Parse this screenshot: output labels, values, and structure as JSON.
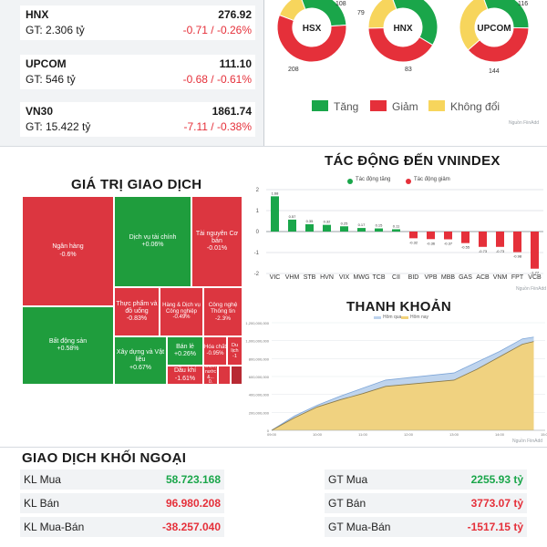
{
  "indices": [
    {
      "name": "HNX",
      "value": "276.92",
      "gt": "GT: 2.306 tỷ",
      "change": "-0.71 / -0.26%"
    },
    {
      "name": "UPCOM",
      "value": "111.10",
      "gt": "GT: 546 tỷ",
      "change": "-0.68 / -0.61%"
    },
    {
      "name": "VN30",
      "value": "1861.74",
      "gt": "GT: 15.422 tỷ",
      "change": "-7.11 / -0.38%"
    }
  ],
  "breadth": {
    "donuts": [
      {
        "label": "HSX",
        "up_label": "108",
        "down_label": "208",
        "up": 108,
        "down": 208,
        "same": 50
      },
      {
        "label": "HNX",
        "up_label": "79",
        "down_label": "83",
        "up": 79,
        "down": 83,
        "same": 40
      },
      {
        "label": "UPCOM",
        "up_label": "116",
        "down_label": "144",
        "up": 116,
        "down": 144,
        "same": 116
      }
    ],
    "legend": {
      "up": "Tăng",
      "down": "Giảm",
      "same": "Không đổi"
    },
    "source": "Nguồn FiinAdd",
    "colors": {
      "up": "#1aa64a",
      "down": "#e5303a",
      "same": "#f7d55c"
    }
  },
  "treemap": {
    "title": "GIÁ TRỊ GIAO DỊCH",
    "cells": [
      {
        "name": "Ngân hàng",
        "change": "-0.6%",
        "color": "#dc3640"
      },
      {
        "name": "Bất động sản",
        "change": "+0.58%",
        "color": "#1f9d3d"
      },
      {
        "name": "Dịch vụ tài chính",
        "change": "+0.06%",
        "color": "#1f9d3d"
      },
      {
        "name": "Tài nguyên Cơ bản",
        "change": "-0.01%",
        "color": "#dc3640"
      },
      {
        "name": "Thực phẩm và đồ uống",
        "change": "-0.83%",
        "color": "#dc3640"
      },
      {
        "name": "Hàng & Dịch vụ Công nghiệp",
        "change": "-0.49%",
        "color": "#dc3640"
      },
      {
        "name": "Công nghệ Thông tin",
        "change": "-2.3%",
        "color": "#dc3640"
      },
      {
        "name": "Xây dựng và Vật liệu",
        "change": "+0.67%",
        "color": "#1f9d3d"
      },
      {
        "name": "Bán lẻ",
        "change": "+0.26%",
        "color": "#1f9d3d"
      },
      {
        "name": "Hóa chất",
        "change": "-0.95%",
        "color": "#dc3640"
      },
      {
        "name": "Du lịch",
        "change": "-1",
        "color": "#dc3640"
      },
      {
        "name": "Dầu khí",
        "change": "-1.61%",
        "color": "#dc3640"
      },
      {
        "name": "Điện, nước &...",
        "change": "0.",
        "color": "#dc3640"
      }
    ]
  },
  "impact": {
    "title": "TÁC ĐỘNG ĐẾN VNINDEX",
    "legend_up": "Tác động tăng",
    "legend_down": "Tác động giảm",
    "source": "Nguồn FiinAdd"
  },
  "liquidity": {
    "title": "THANH KHOẢN",
    "legend": [
      "Hôm qua",
      "Hôm nay"
    ],
    "source": "Nguồn FiinAdd"
  },
  "chart_data": [
    {
      "type": "pie",
      "labels": [
        "HSX",
        "HNX",
        "UPCOM"
      ],
      "series": [
        {
          "name": "Tăng",
          "values": [
            108,
            79,
            116
          ]
        },
        {
          "name": "Giảm",
          "values": [
            208,
            83,
            144
          ]
        }
      ],
      "legend": [
        "Tăng",
        "Giảm",
        "Không đổi"
      ]
    },
    {
      "type": "bar",
      "title": "TÁC ĐỘNG ĐẾN VNINDEX",
      "categories": [
        "VIC",
        "VHM",
        "STB",
        "HVN",
        "VIX",
        "MWG",
        "TCB",
        "CII",
        "BID",
        "VPB",
        "MBB",
        "GAS",
        "ACB",
        "VNM",
        "FPT",
        "VCB"
      ],
      "values": [
        1.68,
        0.57,
        0.35,
        0.32,
        0.25,
        0.17,
        0.15,
        0.11,
        -0.32,
        -0.36,
        -0.37,
        -0.55,
        -0.73,
        -0.73,
        -0.98,
        -1.77
      ],
      "value_labels": [
        "1.68",
        "0.57",
        "0.35",
        "0.32",
        "0.25",
        "0.17",
        "0.15",
        "0.11",
        "-0.32",
        "-0.36",
        "-0.37",
        "-0.55",
        "-0.73",
        "-0.73",
        "-0.98",
        "-1.77"
      ],
      "yticks": [
        "2",
        "1",
        "0",
        "-1",
        "-2"
      ],
      "ylim": [
        -2,
        2
      ],
      "legend": [
        "Tác động tăng",
        "Tác động giảm"
      ],
      "colors": {
        "up": "#1aa64a",
        "down": "#e5303a"
      }
    },
    {
      "type": "area",
      "title": "THANH KHOẢN",
      "x_ticks": [
        "09:00",
        "10:00",
        "11:00",
        "12:00",
        "13:00",
        "14:00",
        "15:00"
      ],
      "y_ticks": [
        "0",
        "200,000,000",
        "400,000,000",
        "600,000,000",
        "800,000,000",
        "1,000,000,000",
        "1,200,000,000"
      ],
      "ylim": [
        0,
        1200000000
      ],
      "series": [
        {
          "name": "Hôm qua",
          "color": "#bcd2ec",
          "x": [
            9.0,
            9.5,
            10.0,
            10.5,
            11.0,
            11.5,
            13.0,
            13.5,
            14.0,
            14.5,
            14.75
          ],
          "values": [
            0,
            160000000,
            280000000,
            380000000,
            470000000,
            560000000,
            640000000,
            760000000,
            880000000,
            1020000000,
            1040000000
          ]
        },
        {
          "name": "Hôm nay",
          "color": "#f2d27a",
          "x": [
            9.0,
            9.5,
            10.0,
            10.5,
            11.0,
            11.5,
            13.0,
            13.5,
            14.0,
            14.5,
            14.75
          ],
          "values": [
            0,
            140000000,
            260000000,
            340000000,
            410000000,
            490000000,
            560000000,
            680000000,
            820000000,
            960000000,
            990000000
          ]
        }
      ]
    }
  ],
  "foreign": {
    "title": "GIAO DỊCH KHỐI NGOẠI",
    "rows": [
      {
        "l_label": "KL Mua",
        "l_value": "58.723.168",
        "r_label": "GT Mua",
        "r_value": "2255.93 tỷ",
        "positive": true
      },
      {
        "l_label": "KL Bán",
        "l_value": "96.980.208",
        "r_label": "GT Bán",
        "r_value": "3773.07 tỷ",
        "positive": false
      },
      {
        "l_label": "KL Mua-Bán",
        "l_value": "-38.257.040",
        "r_label": "GT Mua-Bán",
        "r_value": "-1517.15 tỷ",
        "positive": false
      }
    ]
  }
}
